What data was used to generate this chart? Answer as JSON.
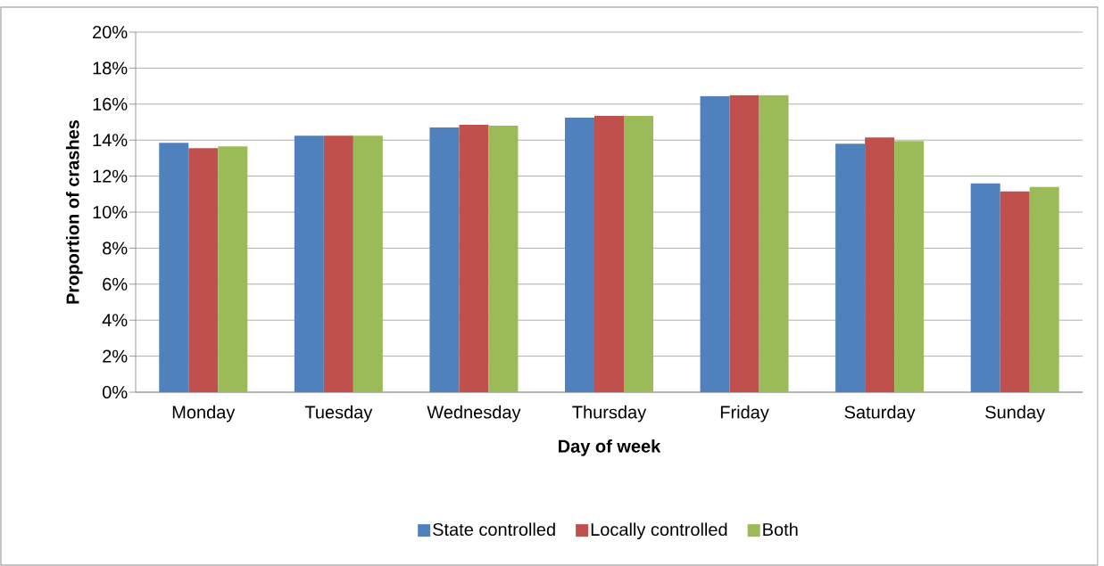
{
  "chart_data": {
    "type": "bar",
    "xlabel": "Day of week",
    "ylabel": "Proportion of crashes",
    "categories": [
      "Monday",
      "Tuesday",
      "Wednesday",
      "Thursday",
      "Friday",
      "Saturday",
      "Sunday"
    ],
    "series": [
      {
        "name": "State controlled",
        "color": "#4f81bd",
        "values": [
          13.85,
          14.25,
          14.7,
          15.25,
          16.45,
          13.8,
          11.6
        ]
      },
      {
        "name": "Locally controlled",
        "color": "#c0504d",
        "values": [
          13.55,
          14.25,
          14.85,
          15.35,
          16.5,
          14.15,
          11.15
        ]
      },
      {
        "name": "Both",
        "color": "#9bbb59",
        "values": [
          13.65,
          14.25,
          14.8,
          15.35,
          16.5,
          13.95,
          11.4
        ]
      }
    ],
    "ylim": [
      0,
      20
    ],
    "yticks": [
      {
        "value": 0,
        "label": "0%"
      },
      {
        "value": 2,
        "label": "2%"
      },
      {
        "value": 4,
        "label": "4%"
      },
      {
        "value": 6,
        "label": "6%"
      },
      {
        "value": 8,
        "label": "8%"
      },
      {
        "value": 10,
        "label": "10%"
      },
      {
        "value": 12,
        "label": "12%"
      },
      {
        "value": 14,
        "label": "14%"
      },
      {
        "value": 16,
        "label": "16%"
      },
      {
        "value": 18,
        "label": "18%"
      },
      {
        "value": 20,
        "label": "20%"
      }
    ],
    "grid": "y",
    "legend": "bottom"
  }
}
